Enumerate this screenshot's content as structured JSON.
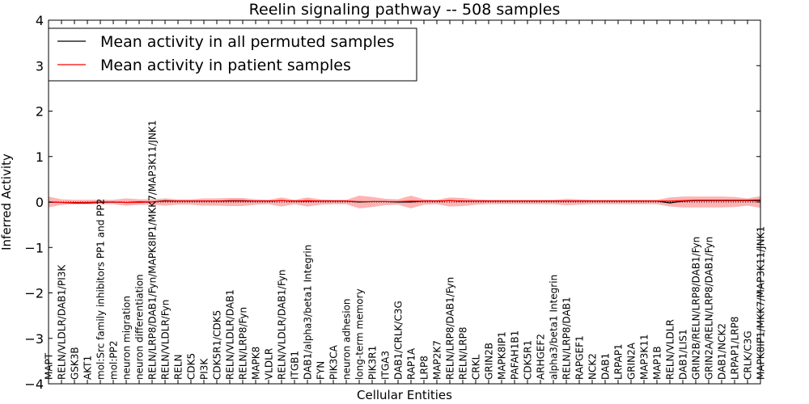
{
  "chart_data": {
    "type": "line",
    "title": "Reelin signaling pathway -- 508 samples",
    "xlabel": "Cellular Entities",
    "ylabel": "Inferred Activity",
    "ylim": [
      -4,
      4
    ],
    "yticks": [
      4,
      3,
      2,
      1,
      0,
      -1,
      -2,
      -3,
      -4
    ],
    "ytick_labels": [
      "4",
      "3",
      "2",
      "1",
      "0",
      "−1",
      "−2",
      "−3",
      "−4"
    ],
    "baseline": 0,
    "legend_position": "top-left",
    "categories": [
      "MAPT",
      "RELN/VLDLR/DAB1/PI3K",
      "GSK3B",
      "AKT1",
      "mol:Src family inhibitors PP1 and PP2",
      "mol:PP2",
      "neuron migration",
      "neuron differentiation",
      "RELN/LRP8/DAB1/Fyn/MAPK8IP1/MKK7/MAP3K11/JNK1",
      "RELN/VLDLR/Fyn",
      "RELN",
      "CDK5",
      "PI3K",
      "CDK5R1/CDK5",
      "RELN/VLDLR/DAB1",
      "RELN/LRP8/Fyn",
      "MAPK8",
      "VLDLR",
      "RELN/VLDLR/DAB1/Fyn",
      "ITGB1",
      "DAB1/alpha3/beta1 Integrin",
      "FYN",
      "PIK3CA",
      "neuron adhesion",
      "long-term memory",
      "PIK3R1",
      "ITGA3",
      "DAB1/CRLK/C3G",
      "RAP1A",
      "LRP8",
      "MAP2K7",
      "RELN/LRP8/DAB1/Fyn",
      "RELN/LRP8",
      "CRKL",
      "GRIN2B",
      "MAPK8IP1",
      "PAFAH1B1",
      "CDK5R1",
      "ARHGEF2",
      "alpha3/beta1 Integrin",
      "RELN/LRP8/DAB1",
      "RAPGEF1",
      "NCK2",
      "DAB1",
      "LRPAP1",
      "GRIN2A",
      "MAP3K11",
      "MAP1B",
      "RELN/VLDLR",
      "DAB1/LIS1",
      "GRIN2B/RELN/LRP8/DAB1/Fyn",
      "GRIN2A/RELN/LRP8/DAB1/Fyn",
      "DAB1/NCK2",
      "LRPAP1/LRP8",
      "CRLK/C3G",
      "MAPK8IP1/MKK7/MAP3K11/JNK1"
    ],
    "series": [
      {
        "name": "Mean activity in all permuted samples",
        "color": "#000000",
        "values": [
          0.0,
          -0.01,
          -0.02,
          -0.02,
          -0.01,
          0.0,
          -0.01,
          0.0,
          0.0,
          0.03,
          0.02,
          0.02,
          0.02,
          0.02,
          0.03,
          0.03,
          0.02,
          0.02,
          0.03,
          0.02,
          0.02,
          0.02,
          0.02,
          0.02,
          0.0,
          0.01,
          0.01,
          0.0,
          0.0,
          0.02,
          0.02,
          0.03,
          0.02,
          0.02,
          0.02,
          0.02,
          0.02,
          0.02,
          0.02,
          0.02,
          0.02,
          0.02,
          0.02,
          0.02,
          0.02,
          0.02,
          0.02,
          0.02,
          -0.02,
          0.02,
          0.03,
          0.03,
          0.03,
          0.03,
          0.03,
          0.03
        ]
      },
      {
        "name": "Mean activity in patient samples",
        "color": "#ff0000",
        "band_color": "#ff9a9a",
        "values": [
          0.0,
          -0.01,
          -0.01,
          -0.01,
          0.0,
          0.0,
          -0.01,
          -0.01,
          0.0,
          0.02,
          0.02,
          0.02,
          0.02,
          0.02,
          0.02,
          0.02,
          0.02,
          0.02,
          0.03,
          0.02,
          0.03,
          0.02,
          0.02,
          0.02,
          0.01,
          0.01,
          0.01,
          0.01,
          0.02,
          0.02,
          0.02,
          0.03,
          0.02,
          0.02,
          0.02,
          0.02,
          0.02,
          0.02,
          0.02,
          0.02,
          0.02,
          0.02,
          0.02,
          0.02,
          0.02,
          0.02,
          0.02,
          0.02,
          0.02,
          0.03,
          0.04,
          0.04,
          0.04,
          0.04,
          0.04,
          0.05
        ],
        "upper": [
          0.12,
          0.06,
          0.05,
          0.05,
          0.05,
          0.05,
          0.08,
          0.06,
          0.06,
          0.08,
          0.06,
          0.06,
          0.08,
          0.08,
          0.09,
          0.09,
          0.06,
          0.05,
          0.1,
          0.05,
          0.1,
          0.06,
          0.05,
          0.05,
          0.14,
          0.11,
          0.07,
          0.06,
          0.14,
          0.06,
          0.05,
          0.1,
          0.09,
          0.06,
          0.05,
          0.05,
          0.05,
          0.05,
          0.05,
          0.05,
          0.07,
          0.06,
          0.05,
          0.05,
          0.05,
          0.05,
          0.05,
          0.05,
          0.1,
          0.12,
          0.12,
          0.12,
          0.12,
          0.11,
          0.08,
          0.13
        ]
      }
    ]
  }
}
